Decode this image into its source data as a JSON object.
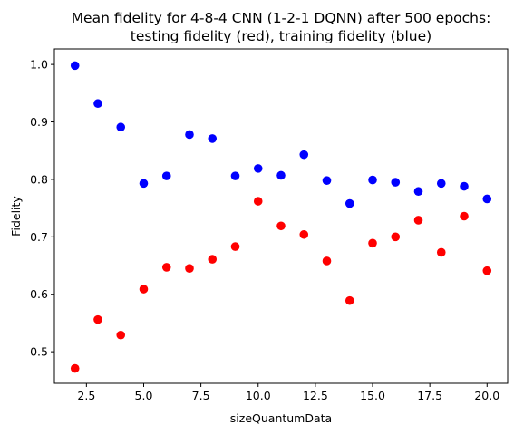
{
  "chart_data": {
    "type": "scatter",
    "title_lines": [
      "Mean fidelity for 4-8-4 CNN (1-2-1 DQNN) after 500 epochs:",
      "testing fidelity (red), training fidelity (blue)"
    ],
    "xlabel": "sizeQuantumData",
    "ylabel": "Fidelity",
    "xlim": [
      1.1,
      20.9
    ],
    "ylim": [
      0.445,
      1.027
    ],
    "x_ticks": [
      2.5,
      5.0,
      7.5,
      10.0,
      12.5,
      15.0,
      17.5,
      20.0
    ],
    "x_tick_labels": [
      "2.5",
      "5.0",
      "7.5",
      "10.0",
      "12.5",
      "15.0",
      "17.5",
      "20.0"
    ],
    "y_ticks": [
      0.5,
      0.6,
      0.7,
      0.8,
      0.9,
      1.0
    ],
    "y_tick_labels": [
      "0.5",
      "0.6",
      "0.7",
      "0.8",
      "0.9",
      "1.0"
    ],
    "grid": false,
    "series": [
      {
        "color": "#0000ff",
        "x": [
          2,
          3,
          4,
          5,
          6,
          7,
          8,
          9,
          10,
          11,
          12,
          13,
          14,
          15,
          16,
          17,
          18,
          19,
          20
        ],
        "y": [
          0.998,
          0.932,
          0.891,
          0.793,
          0.806,
          0.878,
          0.871,
          0.806,
          0.819,
          0.807,
          0.843,
          0.798,
          0.758,
          0.799,
          0.795,
          0.779,
          0.793,
          0.788,
          0.766
        ]
      },
      {
        "color": "#ff0000",
        "x": [
          2,
          3,
          4,
          5,
          6,
          7,
          8,
          9,
          10,
          11,
          12,
          13,
          14,
          15,
          16,
          17,
          18,
          19,
          20
        ],
        "y": [
          0.471,
          0.556,
          0.529,
          0.609,
          0.647,
          0.645,
          0.661,
          0.683,
          0.762,
          0.719,
          0.704,
          0.658,
          0.589,
          0.689,
          0.7,
          0.729,
          0.673,
          0.736,
          0.641
        ]
      }
    ]
  }
}
